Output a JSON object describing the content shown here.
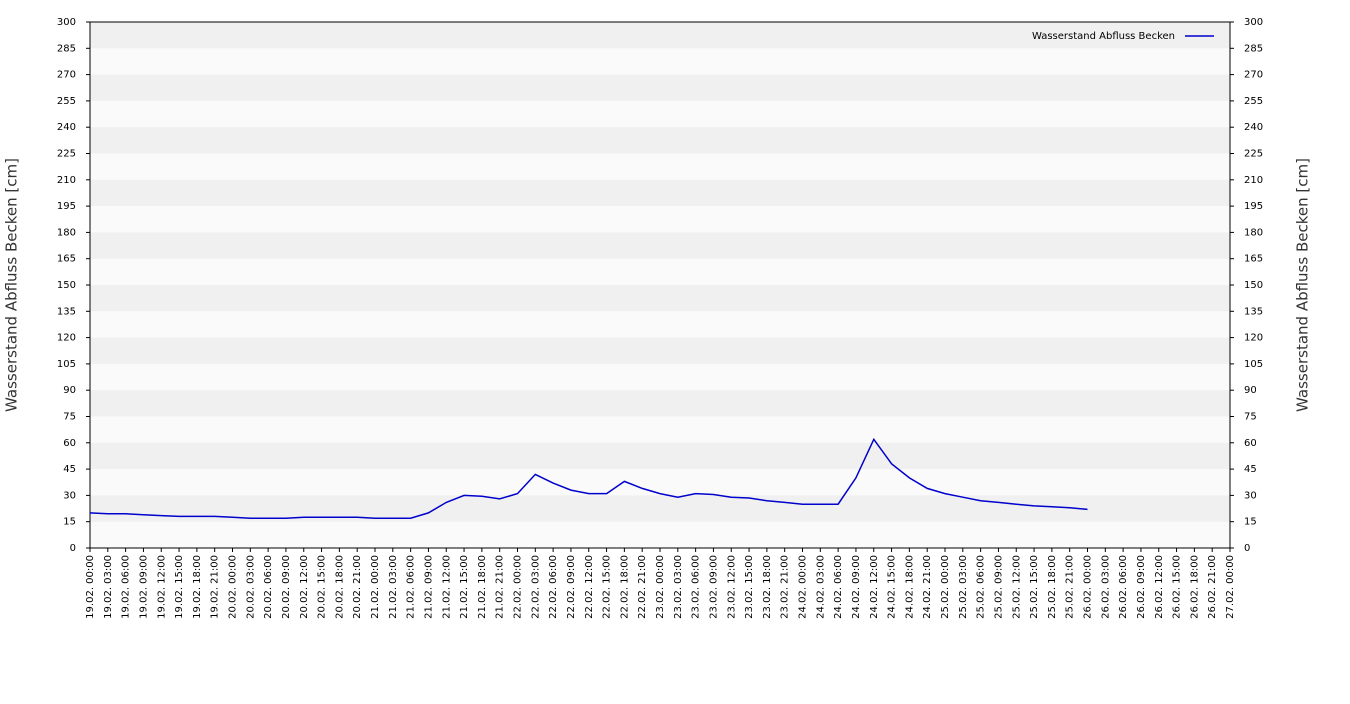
{
  "chart_data": {
    "type": "line",
    "y_label": "Wasserstand Abfluss Becken [cm]",
    "y2_label": "Wasserstand Abfluss Becken [cm]",
    "categories": [
      "19.02. 00:00",
      "19.02. 03:00",
      "19.02. 06:00",
      "19.02. 09:00",
      "19.02. 12:00",
      "19.02. 15:00",
      "19.02. 18:00",
      "19.02. 21:00",
      "20.02. 00:00",
      "20.02. 03:00",
      "20.02. 06:00",
      "20.02. 09:00",
      "20.02. 12:00",
      "20.02. 15:00",
      "20.02. 18:00",
      "20.02. 21:00",
      "21.02. 00:00",
      "21.02. 03:00",
      "21.02. 06:00",
      "21.02. 09:00",
      "21.02. 12:00",
      "21.02. 15:00",
      "21.02. 18:00",
      "21.02. 21:00",
      "22.02. 00:00",
      "22.02. 03:00",
      "22.02. 06:00",
      "22.02. 09:00",
      "22.02. 12:00",
      "22.02. 15:00",
      "22.02. 18:00",
      "22.02. 21:00",
      "23.02. 00:00",
      "23.02. 03:00",
      "23.02. 06:00",
      "23.02. 09:00",
      "23.02. 12:00",
      "23.02. 15:00",
      "23.02. 18:00",
      "23.02. 21:00",
      "24.02. 00:00",
      "24.02. 03:00",
      "24.02. 06:00",
      "24.02. 09:00",
      "24.02. 12:00",
      "24.02. 15:00",
      "24.02. 18:00",
      "24.02. 21:00",
      "25.02. 00:00",
      "25.02. 03:00",
      "25.02. 06:00",
      "25.02. 09:00",
      "25.02. 12:00",
      "25.02. 15:00",
      "25.02. 18:00",
      "25.02. 21:00",
      "26.02. 00:00",
      "26.02. 03:00",
      "26.02. 06:00",
      "26.02. 09:00",
      "26.02. 12:00",
      "26.02. 15:00",
      "26.02. 18:00",
      "26.02. 21:00",
      "27.02. 00:00"
    ],
    "series": [
      {
        "name": "Wasserstand Abfluss Becken",
        "color": "#0000cc",
        "values": [
          20,
          19.5,
          19.5,
          19,
          18.5,
          18,
          18,
          18,
          17.5,
          17,
          17,
          17,
          17.5,
          17.5,
          17.5,
          17.5,
          17,
          17,
          17,
          20,
          26,
          30,
          29.5,
          28,
          31,
          42,
          37,
          33,
          31,
          31,
          38,
          34,
          31,
          29,
          31,
          30.5,
          29,
          28.5,
          27,
          26,
          25,
          25,
          25,
          40,
          62,
          48,
          40,
          34,
          31,
          29,
          27,
          26,
          25,
          24,
          23.5,
          23,
          22,
          null,
          null,
          null,
          null,
          null,
          null,
          null,
          null
        ]
      }
    ],
    "ylim": [
      0,
      300
    ],
    "yticks": [
      0,
      15,
      30,
      45,
      60,
      75,
      90,
      105,
      120,
      135,
      150,
      165,
      180,
      195,
      210,
      225,
      240,
      255,
      270,
      285,
      300
    ],
    "y2lim": [
      0,
      300
    ],
    "y2ticks": [
      0,
      15,
      30,
      45,
      60,
      75,
      90,
      105,
      120,
      135,
      150,
      165,
      180,
      195,
      210,
      225,
      240,
      255,
      270,
      285,
      300
    ],
    "grid": true,
    "legend": "upper right"
  }
}
